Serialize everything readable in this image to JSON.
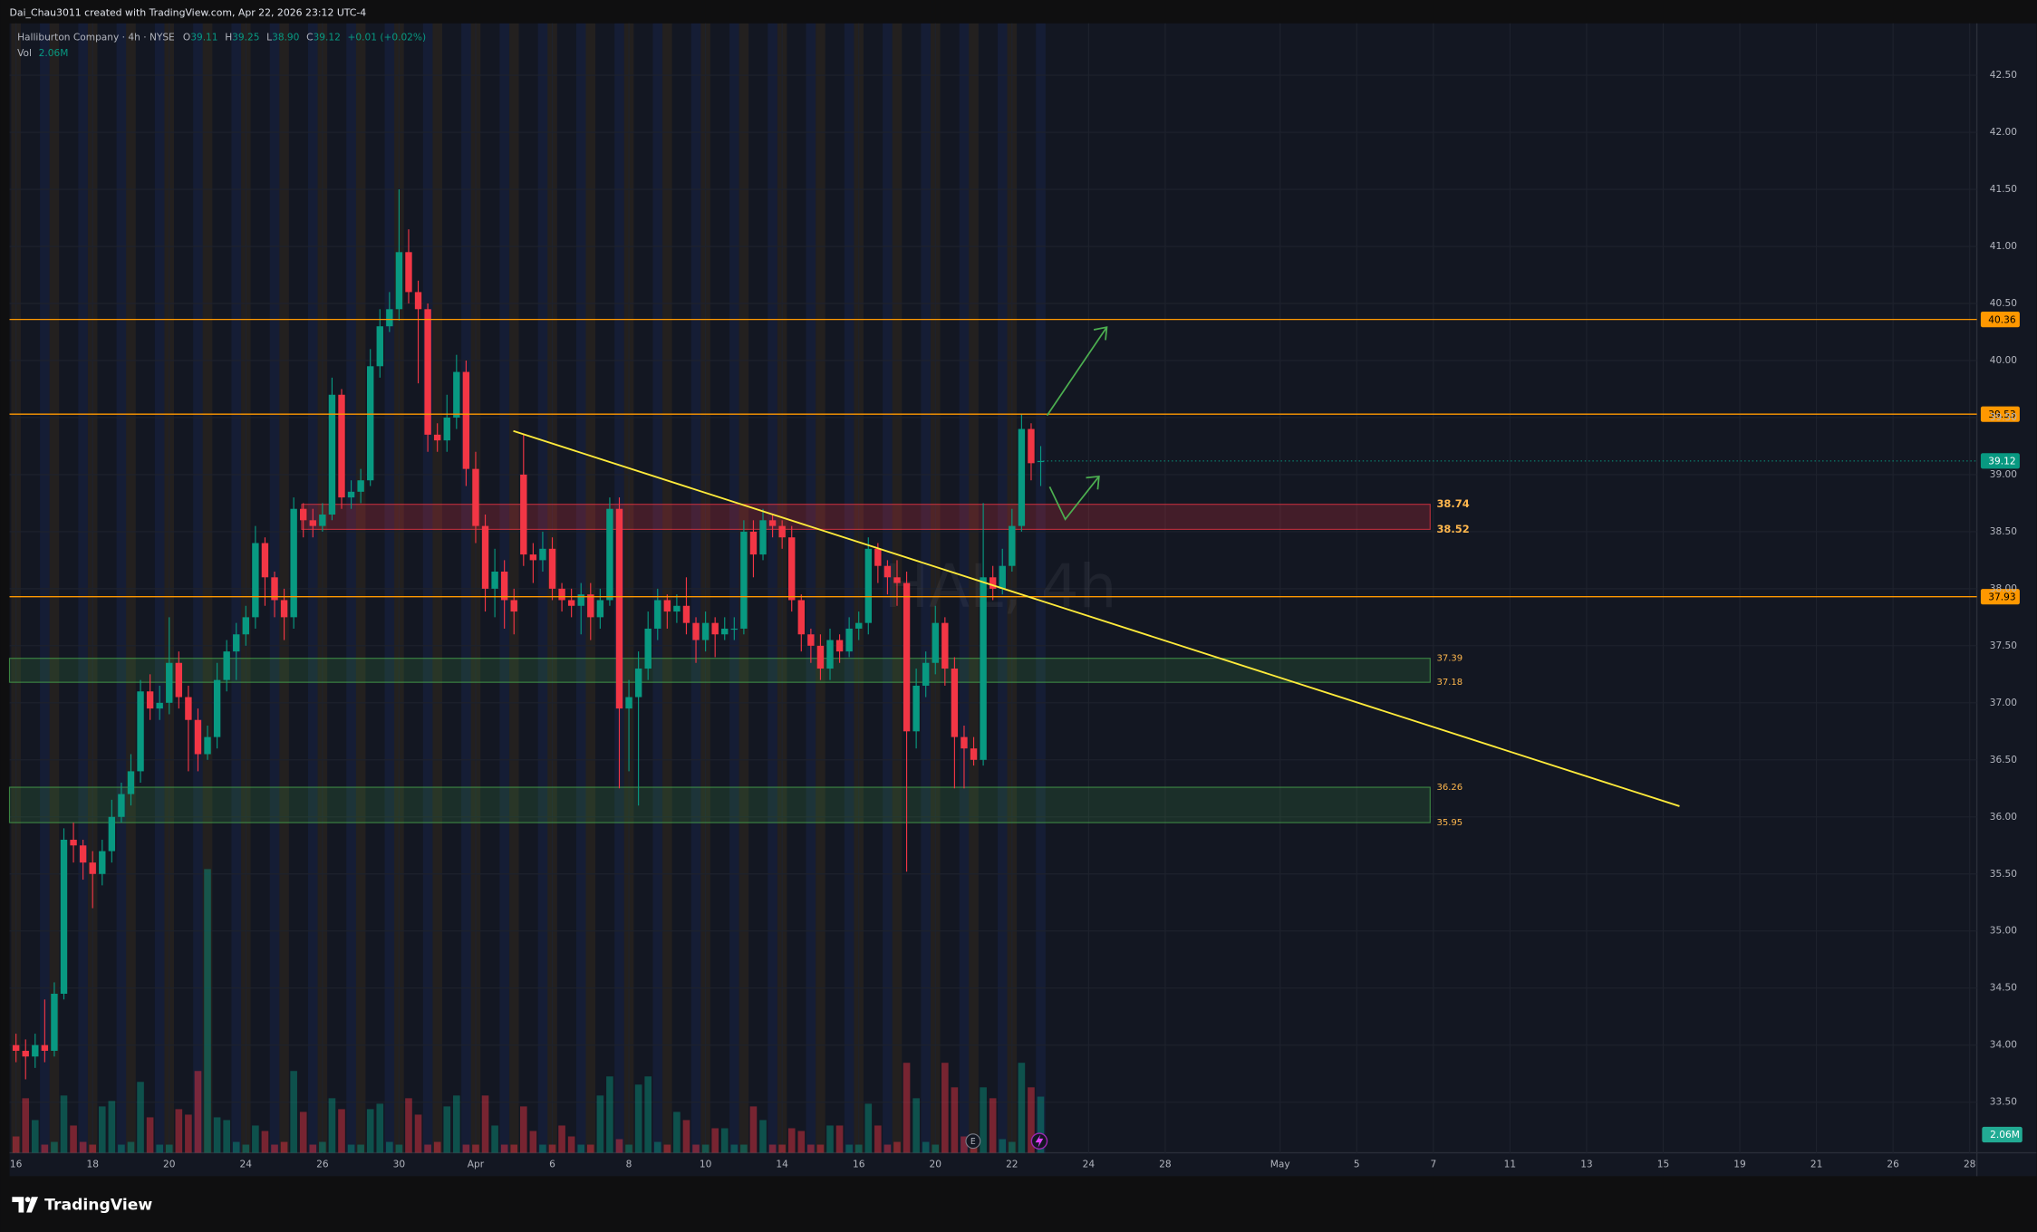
{
  "chart_data": {
    "type": "candlestick",
    "attribution": "Dai_Chau3011 created with TradingView.com, Apr 22, 2026 23:12 UTC-4",
    "title": "Halliburton Company · 4h · NYSE",
    "legend": [
      {
        "key": "O",
        "value": "39.11"
      },
      {
        "key": "H",
        "value": "39.25"
      },
      {
        "key": "L",
        "value": "38.90"
      },
      {
        "key": "C",
        "value": "39.12"
      }
    ],
    "change": "+0.01 (+0.02%)",
    "volume_name": "Vol",
    "volume_label": "2.06M",
    "watermark": "HAL, 4h",
    "earnings_marker": "E",
    "brand": "TradingView",
    "up_color": "#089981",
    "down_color": "#f23645",
    "grid": true,
    "x": [
      0,
      1,
      2,
      3,
      4,
      5,
      6,
      7,
      8,
      9,
      10,
      11,
      12,
      13,
      14,
      15,
      16,
      17,
      18,
      19,
      20,
      21,
      22,
      23,
      24,
      25,
      26,
      27,
      28,
      29,
      30,
      31,
      32,
      33,
      34,
      35,
      36,
      37,
      38,
      39,
      40,
      41,
      42,
      43,
      44,
      45,
      46,
      47,
      48,
      49,
      50,
      51,
      52,
      53,
      54,
      55,
      56,
      57,
      58,
      59,
      60,
      61,
      62,
      63,
      64,
      65,
      66,
      67,
      68,
      69,
      70,
      71,
      72,
      73,
      74,
      75,
      76,
      77,
      78,
      79,
      80,
      81,
      82,
      83,
      84,
      85,
      86,
      87,
      88,
      89,
      90,
      91,
      92,
      93,
      94,
      95,
      96,
      97,
      98,
      99,
      100,
      101,
      102,
      103,
      104,
      105,
      106,
      107
    ],
    "open": [
      34.0,
      33.95,
      33.9,
      34.0,
      33.95,
      34.45,
      35.8,
      35.75,
      35.6,
      35.5,
      35.7,
      36.0,
      36.2,
      36.4,
      37.1,
      36.95,
      37.0,
      37.35,
      37.05,
      36.85,
      36.55,
      36.7,
      37.2,
      37.45,
      37.6,
      37.75,
      38.4,
      38.1,
      37.9,
      37.75,
      38.7,
      38.6,
      38.55,
      38.65,
      39.7,
      38.8,
      38.85,
      38.95,
      39.95,
      40.3,
      40.45,
      40.95,
      40.6,
      40.45,
      39.35,
      39.3,
      39.5,
      39.9,
      39.05,
      38.55,
      38.0,
      38.15,
      37.9,
      39.0,
      38.3,
      38.25,
      38.35,
      38.0,
      37.9,
      37.85,
      37.95,
      37.75,
      37.9,
      38.7,
      36.95,
      37.05,
      37.3,
      37.65,
      37.9,
      37.8,
      37.85,
      37.7,
      37.55,
      37.7,
      37.6,
      37.65,
      37.65,
      38.5,
      38.3,
      38.6,
      38.55,
      38.45,
      37.9,
      37.6,
      37.5,
      37.3,
      37.55,
      37.45,
      37.65,
      37.7,
      38.35,
      38.2,
      38.1,
      38.05,
      36.75,
      37.15,
      37.35,
      37.7,
      37.3,
      36.7,
      36.6,
      36.5,
      38.1,
      38.0,
      38.2,
      38.55,
      39.4,
      39.11
    ],
    "high": [
      34.1,
      34.05,
      34.1,
      34.4,
      34.55,
      35.9,
      35.95,
      35.8,
      35.7,
      35.8,
      36.15,
      36.3,
      36.55,
      37.2,
      37.25,
      37.15,
      37.75,
      37.45,
      37.15,
      36.95,
      36.8,
      37.35,
      37.55,
      37.7,
      37.85,
      38.55,
      38.45,
      38.15,
      38.0,
      38.8,
      38.75,
      38.7,
      38.75,
      39.85,
      39.75,
      38.95,
      39.05,
      40.1,
      40.45,
      40.6,
      41.5,
      41.15,
      40.7,
      40.5,
      39.45,
      39.7,
      40.05,
      40.0,
      39.2,
      38.65,
      38.35,
      38.25,
      38.0,
      39.35,
      38.4,
      38.5,
      38.45,
      38.05,
      38.0,
      38.05,
      38.05,
      38.0,
      38.8,
      38.8,
      37.2,
      37.45,
      37.8,
      38.0,
      37.95,
      37.95,
      38.1,
      37.75,
      37.8,
      37.75,
      37.75,
      37.75,
      38.6,
      38.6,
      38.7,
      38.65,
      38.6,
      38.55,
      37.95,
      37.65,
      37.6,
      37.65,
      37.6,
      37.75,
      37.8,
      38.45,
      38.4,
      38.25,
      38.25,
      38.15,
      37.3,
      37.45,
      37.85,
      37.75,
      37.4,
      36.8,
      36.7,
      38.75,
      38.2,
      38.35,
      38.7,
      39.53,
      39.45,
      39.25
    ],
    "low": [
      33.85,
      33.7,
      33.8,
      33.85,
      33.9,
      34.4,
      35.6,
      35.45,
      35.2,
      35.4,
      35.6,
      35.95,
      36.1,
      36.3,
      36.85,
      36.85,
      36.9,
      36.95,
      36.4,
      36.4,
      36.5,
      36.6,
      37.1,
      37.2,
      37.5,
      37.65,
      37.85,
      37.75,
      37.55,
      37.65,
      38.45,
      38.45,
      38.5,
      38.6,
      38.7,
      38.7,
      38.75,
      38.9,
      39.85,
      40.25,
      40.35,
      40.5,
      39.8,
      39.2,
      39.2,
      39.2,
      39.4,
      38.9,
      38.4,
      37.8,
      37.75,
      37.65,
      37.6,
      38.2,
      38.05,
      38.15,
      37.9,
      37.8,
      37.75,
      37.6,
      37.55,
      37.65,
      37.85,
      36.25,
      36.4,
      36.1,
      37.2,
      37.55,
      37.65,
      37.7,
      37.6,
      37.35,
      37.45,
      37.4,
      37.55,
      37.55,
      37.6,
      38.1,
      38.25,
      38.45,
      38.35,
      37.8,
      37.45,
      37.35,
      37.2,
      37.2,
      37.35,
      37.4,
      37.55,
      37.6,
      38.05,
      37.95,
      37.85,
      35.52,
      36.6,
      37.05,
      37.25,
      37.15,
      36.25,
      36.25,
      36.45,
      36.45,
      37.9,
      37.95,
      38.15,
      38.5,
      38.95,
      38.9
    ],
    "close": [
      33.95,
      33.9,
      34.0,
      33.95,
      34.45,
      35.8,
      35.75,
      35.6,
      35.5,
      35.7,
      36.0,
      36.2,
      36.4,
      37.1,
      36.95,
      37.0,
      37.35,
      37.05,
      36.85,
      36.55,
      36.7,
      37.2,
      37.45,
      37.6,
      37.75,
      38.4,
      38.1,
      37.9,
      37.75,
      38.7,
      38.6,
      38.55,
      38.65,
      39.7,
      38.8,
      38.85,
      38.95,
      39.95,
      40.3,
      40.45,
      40.95,
      40.6,
      40.45,
      39.35,
      39.3,
      39.5,
      39.9,
      39.05,
      38.55,
      38.0,
      38.15,
      37.9,
      37.8,
      38.3,
      38.25,
      38.35,
      38.0,
      37.9,
      37.85,
      37.95,
      37.75,
      37.9,
      38.7,
      36.95,
      37.05,
      37.3,
      37.65,
      37.9,
      37.8,
      37.85,
      37.7,
      37.55,
      37.7,
      37.6,
      37.65,
      37.65,
      38.5,
      38.3,
      38.6,
      38.55,
      38.45,
      37.9,
      37.6,
      37.5,
      37.3,
      37.55,
      37.45,
      37.65,
      37.7,
      38.35,
      38.2,
      38.1,
      38.05,
      36.75,
      37.15,
      37.35,
      37.7,
      37.3,
      36.7,
      36.6,
      36.5,
      38.1,
      38.0,
      38.2,
      38.55,
      39.4,
      39.1,
      39.12
    ],
    "volume": [
      0.6,
      2.0,
      1.2,
      0.3,
      0.4,
      2.1,
      1.0,
      0.4,
      0.3,
      1.7,
      1.9,
      0.3,
      0.4,
      2.6,
      1.3,
      0.3,
      0.3,
      1.6,
      1.4,
      3.0,
      10.4,
      1.3,
      1.2,
      0.4,
      0.3,
      1.0,
      0.8,
      0.3,
      0.4,
      3.0,
      1.5,
      0.3,
      0.4,
      2.0,
      1.6,
      0.3,
      0.3,
      1.6,
      1.8,
      0.4,
      0.3,
      2.0,
      1.4,
      0.3,
      0.4,
      1.7,
      2.1,
      0.3,
      0.3,
      2.1,
      1.0,
      0.3,
      0.3,
      1.7,
      0.8,
      0.3,
      0.3,
      1.0,
      0.6,
      0.3,
      0.3,
      2.1,
      2.8,
      0.5,
      0.3,
      2.5,
      2.8,
      0.4,
      0.3,
      1.5,
      1.2,
      0.3,
      0.3,
      0.9,
      0.9,
      0.3,
      0.3,
      1.7,
      1.2,
      0.3,
      0.3,
      0.9,
      0.8,
      0.3,
      0.3,
      1.0,
      1.0,
      0.3,
      0.3,
      1.8,
      1.0,
      0.3,
      0.4,
      3.3,
      2.0,
      0.4,
      0.3,
      3.3,
      2.4,
      0.6,
      0.3,
      2.4,
      2.0,
      0.5,
      0.4,
      3.3,
      2.4,
      2.06
    ],
    "volume_lim": [
      0,
      41.4
    ],
    "xlim": [
      -0.678,
      204.75
    ],
    "ylim": [
      33.056,
      42.955
    ],
    "xticks": [
      {
        "value": 0,
        "label": "16"
      },
      {
        "value": 8,
        "label": "18"
      },
      {
        "value": 16,
        "label": "20"
      },
      {
        "value": 24,
        "label": "24"
      },
      {
        "value": 32,
        "label": "26"
      },
      {
        "value": 40,
        "label": "30"
      },
      {
        "value": 48,
        "label": "Apr"
      },
      {
        "value": 56,
        "label": "6"
      },
      {
        "value": 64,
        "label": "8"
      },
      {
        "value": 72,
        "label": "10"
      },
      {
        "value": 80,
        "label": "14"
      },
      {
        "value": 88,
        "label": "16"
      },
      {
        "value": 96,
        "label": "20"
      },
      {
        "value": 104,
        "label": "22"
      },
      {
        "value": 112,
        "label": "24"
      },
      {
        "value": 120,
        "label": "28"
      },
      {
        "value": 132,
        "label": "May"
      },
      {
        "value": 140,
        "label": "5"
      },
      {
        "value": 148,
        "label": "7"
      },
      {
        "value": 156,
        "label": "11"
      },
      {
        "value": 164,
        "label": "13"
      },
      {
        "value": 172,
        "label": "15"
      },
      {
        "value": 180,
        "label": "19"
      },
      {
        "value": 188,
        "label": "21"
      },
      {
        "value": 196,
        "label": "26"
      },
      {
        "value": 204,
        "label": "28"
      }
    ],
    "yticks": [
      {
        "value": 33.5,
        "label": "33.50"
      },
      {
        "value": 34,
        "label": "34.00"
      },
      {
        "value": 34.5,
        "label": "34.50"
      },
      {
        "value": 35,
        "label": "35.00"
      },
      {
        "value": 35.5,
        "label": "35.50"
      },
      {
        "value": 36,
        "label": "36.00"
      },
      {
        "value": 36.5,
        "label": "36.50"
      },
      {
        "value": 37,
        "label": "37.00"
      },
      {
        "value": 37.5,
        "label": "37.50"
      },
      {
        "value": 38,
        "label": "38.00"
      },
      {
        "value": 38.5,
        "label": "38.50"
      },
      {
        "value": 39,
        "label": "39.00"
      },
      {
        "value": 39.5,
        "label": "39.50"
      },
      {
        "value": 40,
        "label": "40.00"
      },
      {
        "value": 40.5,
        "label": "40.50"
      },
      {
        "value": 41,
        "label": "41.00"
      },
      {
        "value": 41.5,
        "label": "41.50"
      },
      {
        "value": 42,
        "label": "42.00"
      },
      {
        "value": 42.5,
        "label": "42.50"
      }
    ],
    "last_price": 39.12,
    "level_color": "#ff9800",
    "levels": [
      40.36,
      39.53,
      37.93
    ],
    "zones": [
      {
        "top": 38.74,
        "bottom": 38.52,
        "color": "#f23645"
      },
      {
        "top": 37.39,
        "bottom": 37.18,
        "color": "#4caf50"
      },
      {
        "top": 36.26,
        "bottom": 35.95,
        "color": "#4caf50"
      }
    ]
  }
}
